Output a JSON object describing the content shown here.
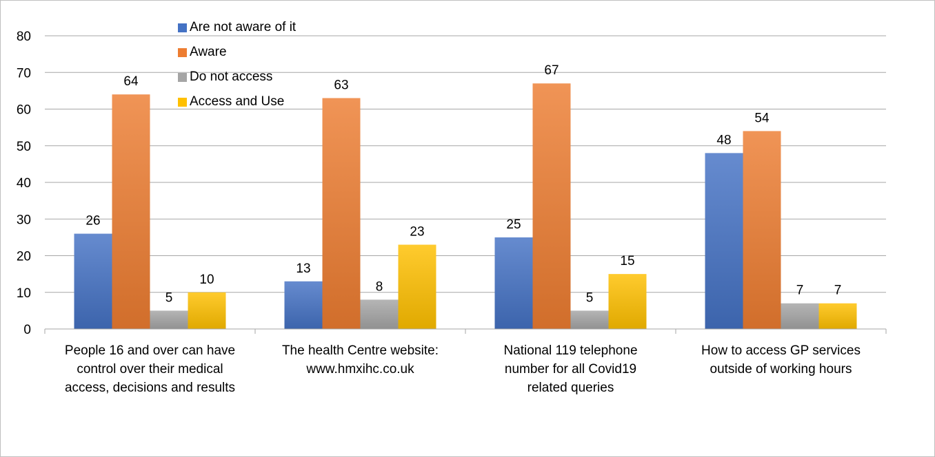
{
  "chart_data": {
    "type": "bar",
    "categories": [
      "People 16 and over can have control over their medical access, decisions and results",
      "The health Centre website: www.hmxihc.co.uk",
      "National 119 telephone number for all Covid19 related queries",
      "How to access GP services outside of working hours"
    ],
    "series": [
      {
        "name": "Are not aware of it",
        "values": [
          26,
          13,
          25,
          48
        ],
        "color": "#4472c4"
      },
      {
        "name": "Aware",
        "values": [
          64,
          63,
          67,
          54
        ],
        "color": "#ed7d31"
      },
      {
        "name": "Do not access",
        "values": [
          5,
          8,
          5,
          7
        ],
        "color": "#a5a5a5"
      },
      {
        "name": "Access and Use",
        "values": [
          10,
          23,
          15,
          7
        ],
        "color": "#ffc000"
      }
    ],
    "ylim": [
      0,
      80
    ],
    "yticks": [
      0,
      10,
      20,
      30,
      40,
      50,
      60,
      70,
      80
    ],
    "grid": true,
    "legend_position": "top-left-inside",
    "data_labels": true
  }
}
